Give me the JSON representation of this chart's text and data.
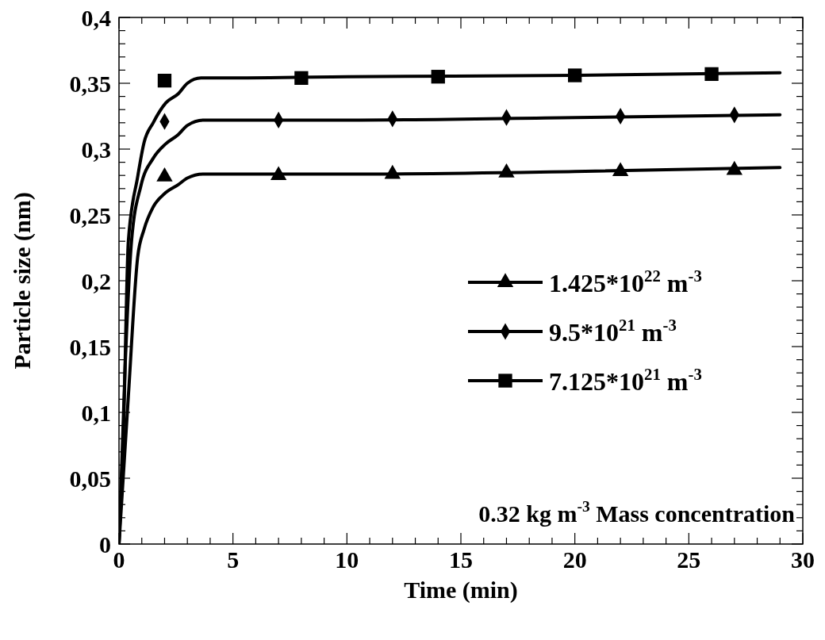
{
  "chart_data": {
    "type": "line",
    "xlabel": "Time (min)",
    "ylabel": "Particle size (nm)",
    "xlim": [
      0,
      30
    ],
    "ylim": [
      0,
      0.4
    ],
    "xticks": [
      0,
      5,
      10,
      15,
      20,
      25,
      30,
      {
        "value": 1,
        "label": null
      },
      {
        "value": 2,
        "label": null
      },
      {
        "value": 3,
        "label": null
      },
      {
        "value": 4,
        "label": null
      },
      {
        "value": 6,
        "label": null
      },
      {
        "value": 7,
        "label": null
      },
      {
        "value": 8,
        "label": null
      },
      {
        "value": 9,
        "label": null
      },
      {
        "value": 11,
        "label": null
      },
      {
        "value": 12,
        "label": null
      },
      {
        "value": 13,
        "label": null
      },
      {
        "value": 14,
        "label": null
      },
      {
        "value": 16,
        "label": null
      },
      {
        "value": 17,
        "label": null
      },
      {
        "value": 18,
        "label": null
      },
      {
        "value": 19,
        "label": null
      },
      {
        "value": 21,
        "label": null
      },
      {
        "value": 22,
        "label": null
      },
      {
        "value": 23,
        "label": null
      },
      {
        "value": 24,
        "label": null
      },
      {
        "value": 26,
        "label": null
      },
      {
        "value": 27,
        "label": null
      },
      {
        "value": 28,
        "label": null
      },
      {
        "value": 29,
        "label": null
      }
    ],
    "yticks": [
      0,
      {
        "value": 0.05,
        "label": "0,05"
      },
      {
        "value": 0.1,
        "label": "0,1"
      },
      {
        "value": 0.15,
        "label": "0,15"
      },
      {
        "value": 0.2,
        "label": "0,2"
      },
      {
        "value": 0.25,
        "label": "0,25"
      },
      {
        "value": 0.3,
        "label": "0,3"
      },
      {
        "value": 0.35,
        "label": "0,35"
      },
      {
        "value": 0.4,
        "label": "0,4"
      },
      {
        "value": 0.01,
        "label": null
      },
      {
        "value": 0.02,
        "label": null
      },
      {
        "value": 0.03,
        "label": null
      },
      {
        "value": 0.04,
        "label": null
      },
      {
        "value": 0.06,
        "label": null
      },
      {
        "value": 0.07,
        "label": null
      },
      {
        "value": 0.08,
        "label": null
      },
      {
        "value": 0.09,
        "label": null
      },
      {
        "value": 0.11,
        "label": null
      },
      {
        "value": 0.12,
        "label": null
      },
      {
        "value": 0.13,
        "label": null
      },
      {
        "value": 0.14,
        "label": null
      },
      {
        "value": 0.16,
        "label": null
      },
      {
        "value": 0.17,
        "label": null
      },
      {
        "value": 0.18,
        "label": null
      },
      {
        "value": 0.19,
        "label": null
      },
      {
        "value": 0.21,
        "label": null
      },
      {
        "value": 0.22,
        "label": null
      },
      {
        "value": 0.23,
        "label": null
      },
      {
        "value": 0.24,
        "label": null
      },
      {
        "value": 0.26,
        "label": null
      },
      {
        "value": 0.27,
        "label": null
      },
      {
        "value": 0.28,
        "label": null
      },
      {
        "value": 0.29,
        "label": null
      },
      {
        "value": 0.31,
        "label": null
      },
      {
        "value": 0.32,
        "label": null
      },
      {
        "value": 0.33,
        "label": null
      },
      {
        "value": 0.34,
        "label": null
      },
      {
        "value": 0.36,
        "label": null
      },
      {
        "value": 0.37,
        "label": null
      },
      {
        "value": 0.38,
        "label": null
      },
      {
        "value": 0.39,
        "label": null
      }
    ],
    "grid": false,
    "legend": "right",
    "line_style": "solid",
    "series": [
      {
        "color": "#000000",
        "marker": "none",
        "x": [
          0,
          0.2,
          0.41,
          0.82,
          1.1,
          1.5,
          2.05,
          2.6,
          3,
          3.6,
          4.1,
          10,
          20,
          29
        ],
        "values": [
          0,
          0.088,
          0.23,
          0.279,
          0.305,
          0.32,
          0.335,
          0.342,
          0.35,
          0.354,
          0.354,
          0.355,
          0.356,
          0.358
        ]
      },
      {
        "color": "#000000",
        "marker": "none",
        "x": [
          0,
          0.27,
          0.55,
          0.96,
          1.5,
          2.05,
          2.6,
          3,
          3.7,
          10,
          20,
          29
        ],
        "values": [
          0,
          0.135,
          0.23,
          0.272,
          0.293,
          0.304,
          0.311,
          0.318,
          0.322,
          0.322,
          0.324,
          0.326
        ]
      },
      {
        "color": "#000000",
        "marker": "none",
        "x": [
          0,
          0.41,
          0.82,
          1.1,
          1.5,
          2.05,
          2.6,
          3,
          3.7,
          10,
          20,
          29
        ],
        "values": [
          0,
          0.112,
          0.218,
          0.239,
          0.256,
          0.267,
          0.273,
          0.278,
          0.281,
          0.281,
          0.283,
          0.286
        ]
      },
      {
        "type": "scatter",
        "name": "1.425*10$^{22}$ m$^{-3}$",
        "color": "#000000",
        "marker": "triangle",
        "x": [
          2,
          7,
          12,
          17,
          22,
          27
        ],
        "values": [
          0.279,
          0.28,
          0.281,
          0.282,
          0.283,
          0.284
        ]
      },
      {
        "type": "scatter",
        "name": "9.5*10$^{21}$ m$^{-3}$",
        "color": "#000000",
        "marker": "diamond",
        "x": [
          2,
          7,
          12,
          17,
          22,
          27
        ],
        "values": [
          0.321,
          0.322,
          0.323,
          0.324,
          0.325,
          0.326
        ]
      },
      {
        "type": "scatter",
        "name": "7.125*10$^{21}$ m$^{-3}$",
        "color": "#000000",
        "marker": "square",
        "x": [
          2,
          8,
          14,
          20,
          26
        ],
        "values": [
          0.352,
          0.354,
          0.355,
          0.356,
          0.357
        ]
      }
    ],
    "annotations": [
      "0.32 kg m$^{-3}$ Mass concentration"
    ]
  }
}
